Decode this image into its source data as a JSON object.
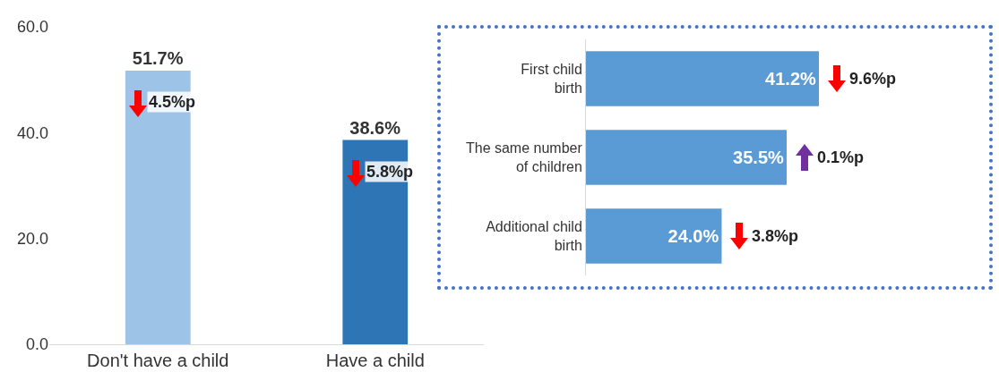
{
  "chart_data": [
    {
      "type": "bar",
      "categories": [
        "Don't have a child",
        "Have a child"
      ],
      "values": [
        51.7,
        38.6
      ],
      "colors": [
        "#9dc3e6",
        "#2e75b6"
      ],
      "value_labels": [
        "51.7%",
        "38.6%"
      ],
      "ylim": [
        0,
        60
      ],
      "yticks": [
        {
          "value": 0,
          "label": "0.0"
        },
        {
          "value": 20,
          "label": "20.0"
        },
        {
          "value": 40,
          "label": "40.0"
        },
        {
          "value": 60,
          "label": "60.0"
        }
      ],
      "grid": false,
      "annotations": [
        "4.5%p",
        "5.8%p"
      ]
    },
    {
      "type": "bar",
      "orientation": "horizontal",
      "categories": [
        "First child birth",
        "The same number of children",
        "Additional child birth"
      ],
      "values": [
        41.2,
        35.5,
        24.0
      ],
      "color": "#5b9bd5",
      "value_labels": [
        "41.2%",
        "35.5%",
        "24.0%"
      ],
      "grid": false,
      "tick_labels": "y",
      "annotations": [
        "9.6%p",
        "0.1%p",
        "3.8%p"
      ]
    }
  ]
}
